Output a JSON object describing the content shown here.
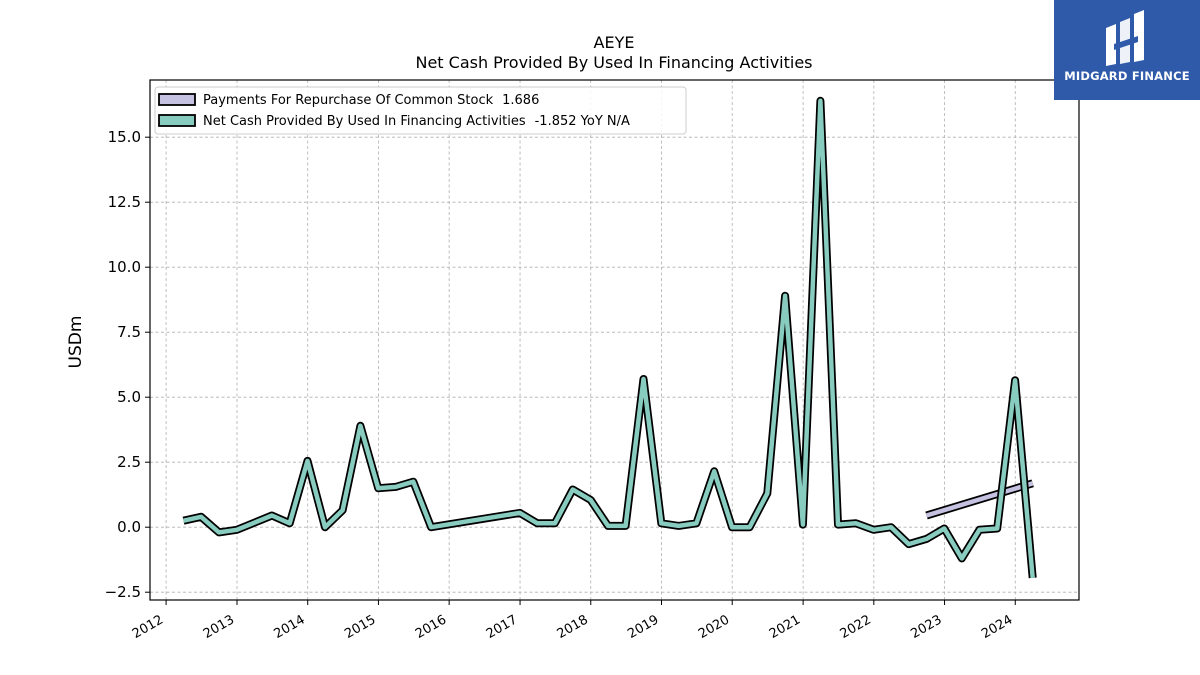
{
  "brand": {
    "name": "MIDGARD FINANCE",
    "bg_color": "#2f5aaa"
  },
  "chart_data": {
    "type": "line",
    "title": "AEYE",
    "subtitle": "Net Cash Provided By Used In Financing Activities",
    "xlabel": "",
    "ylabel": "USDm",
    "xlim": [
      "2011-10-10",
      "2024-11-25"
    ],
    "ylim": [
      -2.8,
      17.2
    ],
    "yticks": [
      -2.5,
      0.0,
      2.5,
      5.0,
      7.5,
      10.0,
      12.5,
      15.0
    ],
    "ytick_labels": [
      "−2.5",
      "0.0",
      "2.5",
      "5.0",
      "7.5",
      "10.0",
      "12.5",
      "15.0"
    ],
    "xticks": [
      "2012-01-01",
      "2013-01-01",
      "2014-01-01",
      "2015-01-01",
      "2016-01-01",
      "2017-01-01",
      "2018-01-01",
      "2019-01-01",
      "2020-01-01",
      "2021-01-01",
      "2022-01-01",
      "2023-01-01",
      "2024-01-01"
    ],
    "xtick_labels": [
      "2012",
      "2013",
      "2014",
      "2015",
      "2016",
      "2017",
      "2018",
      "2019",
      "2020",
      "2021",
      "2022",
      "2023",
      "2024"
    ],
    "grid": true,
    "legend_position": "top-left",
    "series": [
      {
        "name": "Payments For Repurchase Of Common Stock",
        "legend_value": "1.686",
        "color": "#c5c1e0",
        "x": [
          "2022-09-30",
          "2024-03-31"
        ],
        "y": [
          0.45,
          1.69
        ]
      },
      {
        "name": "Net Cash Provided By Used In Financing Activities",
        "legend_value": "-1.852 YoY N/A",
        "color": "#88ccc0",
        "x": [
          "2012-03-31",
          "2012-06-30",
          "2012-09-30",
          "2012-12-31",
          "2013-06-30",
          "2013-09-30",
          "2013-12-31",
          "2014-03-31",
          "2014-06-30",
          "2014-09-30",
          "2014-12-31",
          "2015-03-31",
          "2015-06-30",
          "2015-09-30",
          "2016-12-31",
          "2017-03-31",
          "2017-06-30",
          "2017-09-30",
          "2017-12-31",
          "2018-03-31",
          "2018-06-30",
          "2018-09-30",
          "2018-12-31",
          "2019-03-31",
          "2019-06-30",
          "2019-09-30",
          "2019-12-31",
          "2020-03-31",
          "2020-06-30",
          "2020-09-30",
          "2020-12-31",
          "2021-03-31",
          "2021-06-30",
          "2021-09-30",
          "2021-12-31",
          "2022-03-31",
          "2022-06-30",
          "2022-09-30",
          "2022-12-31",
          "2023-03-31",
          "2023-06-30",
          "2023-09-30",
          "2023-12-31",
          "2024-03-31"
        ],
        "y": [
          0.25,
          0.4,
          -0.2,
          -0.1,
          0.45,
          0.15,
          2.55,
          0.0,
          0.65,
          3.9,
          1.5,
          1.55,
          1.75,
          0.0,
          0.55,
          0.15,
          0.15,
          1.45,
          1.05,
          0.05,
          0.05,
          5.7,
          0.15,
          0.05,
          0.15,
          2.15,
          0.0,
          0.0,
          1.3,
          8.9,
          0.1,
          16.4,
          0.1,
          0.15,
          -0.1,
          0.0,
          -0.65,
          -0.45,
          -0.05,
          -1.2,
          -0.1,
          -0.05,
          5.65,
          -1.95
        ]
      }
    ]
  }
}
